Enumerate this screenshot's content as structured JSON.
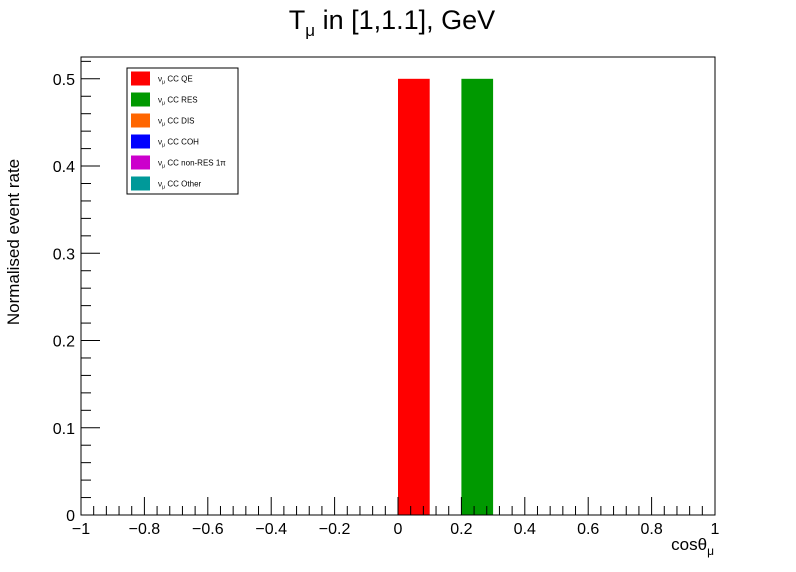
{
  "chart_data": {
    "type": "bar",
    "title": {
      "main": "T",
      "sub": "μ",
      "rest": " in [1,1.1], GeV"
    },
    "xlabel": {
      "main": "cosθ",
      "sub": "μ"
    },
    "ylabel": "Normalised event rate",
    "xlim": [
      -1,
      1
    ],
    "ylim": [
      0,
      0.525
    ],
    "x_ticks": [
      "−1",
      "−0.8",
      "−0.6",
      "−0.4",
      "−0.2",
      "0",
      "0.2",
      "0.4",
      "0.6",
      "0.8",
      "1"
    ],
    "y_ticks": [
      "0",
      "0.1",
      "0.2",
      "0.3",
      "0.4",
      "0.5"
    ],
    "grid": false,
    "legend_position": "top-left",
    "series": [
      {
        "name": "CC QE",
        "color": "#ff0000",
        "bins": [
          {
            "x0": 0.0,
            "x1": 0.1,
            "y": 0.5
          }
        ]
      },
      {
        "name": "CC RES",
        "color": "#009900",
        "bins": [
          {
            "x0": 0.2,
            "x1": 0.3,
            "y": 0.5
          }
        ]
      },
      {
        "name": "CC DIS",
        "color": "#ff6600",
        "bins": []
      },
      {
        "name": "CC COH",
        "color": "#0000ff",
        "bins": []
      },
      {
        "name": "CC non-RES 1π",
        "color": "#cc00cc",
        "bins": []
      },
      {
        "name": "CC Other",
        "color": "#009999",
        "bins": []
      }
    ],
    "legend_prefix": {
      "main": "ν",
      "sub": "μ"
    }
  }
}
